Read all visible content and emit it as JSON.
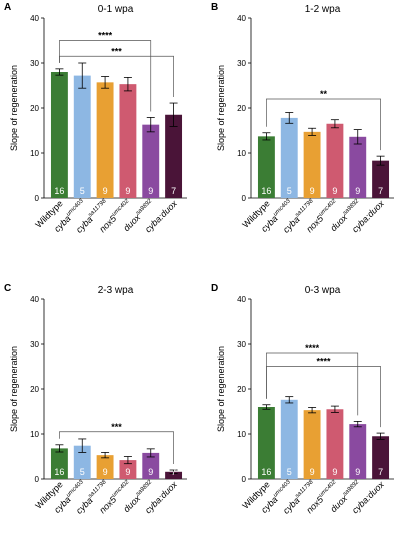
{
  "colors": {
    "Wildtype": "#3b7d34",
    "cyba_umc403": "#8db7e3",
    "cyba_sa11798": "#e8a033",
    "nox5_umc402": "#cf5a70",
    "duox_sa9892": "#8a4aa0",
    "cyba_duox": "#4a1438"
  },
  "chart_data": [
    {
      "type": "bar",
      "panel": "A",
      "title": "0-1 wpa",
      "ylabel": "Slope of regeneration",
      "ylim": [
        0,
        40
      ],
      "yticks": [
        "0",
        "10",
        "20",
        "30",
        "40"
      ],
      "categories": [
        {
          "base": "Wildtype",
          "sup": ""
        },
        {
          "base": "cyba",
          "sup": "umc403"
        },
        {
          "base": "cyba",
          "sup": "sa11798"
        },
        {
          "base": "nox5",
          "sup": "umc402"
        },
        {
          "base": "duox",
          "sup": "sa9892"
        },
        {
          "base": "cyba:duox",
          "sup": ""
        }
      ],
      "values": [
        28.0,
        27.2,
        25.7,
        25.3,
        16.3,
        18.5
      ],
      "errors": [
        0.7,
        2.8,
        1.3,
        1.5,
        1.6,
        2.6
      ],
      "n": [
        "16",
        "5",
        "9",
        "9",
        "9",
        "7"
      ],
      "significance": [
        {
          "from": 0,
          "to": 4,
          "label": "****",
          "y": 35.0
        },
        {
          "from": 0,
          "to": 5,
          "label": "***",
          "y": 31.5
        }
      ]
    },
    {
      "type": "bar",
      "panel": "B",
      "title": "1-2 wpa",
      "ylabel": "Slope of regeneration",
      "ylim": [
        0,
        40
      ],
      "yticks": [
        "0",
        "10",
        "20",
        "30",
        "40"
      ],
      "categories": [
        {
          "base": "Wildtype",
          "sup": ""
        },
        {
          "base": "cyba",
          "sup": "umc403"
        },
        {
          "base": "cyba",
          "sup": "sa11798"
        },
        {
          "base": "nox5",
          "sup": "umc402"
        },
        {
          "base": "duox",
          "sup": "sa9892"
        },
        {
          "base": "cyba:duox",
          "sup": ""
        }
      ],
      "values": [
        13.7,
        17.8,
        14.7,
        16.5,
        13.6,
        8.3
      ],
      "errors": [
        0.8,
        1.2,
        0.8,
        0.9,
        1.6,
        1.0
      ],
      "n": [
        "16",
        "5",
        "9",
        "9",
        "9",
        "7"
      ],
      "significance": [
        {
          "from": 0,
          "to": 5,
          "label": "**",
          "y": 22.0
        }
      ]
    },
    {
      "type": "bar",
      "panel": "C",
      "title": "2-3 wpa",
      "ylabel": "Slope of regeneration",
      "ylim": [
        0,
        40
      ],
      "yticks": [
        "0",
        "10",
        "20",
        "30",
        "40"
      ],
      "categories": [
        {
          "base": "Wildtype",
          "sup": ""
        },
        {
          "base": "cyba",
          "sup": "umc403"
        },
        {
          "base": "cyba",
          "sup": "sa11798"
        },
        {
          "base": "nox5",
          "sup": "umc402"
        },
        {
          "base": "duox",
          "sup": "sa9892"
        },
        {
          "base": "cyba:duox",
          "sup": ""
        }
      ],
      "values": [
        6.8,
        7.4,
        5.3,
        4.2,
        5.8,
        1.6
      ],
      "errors": [
        0.8,
        1.5,
        0.6,
        0.8,
        0.9,
        0.4
      ],
      "n": [
        "16",
        "5",
        "9",
        "9",
        "9",
        "7"
      ],
      "significance": [
        {
          "from": 0,
          "to": 5,
          "label": "***",
          "y": 10.5
        }
      ]
    },
    {
      "type": "bar",
      "panel": "D",
      "title": "0-3 wpa",
      "ylabel": "Slope of regeneration",
      "ylim": [
        0,
        40
      ],
      "yticks": [
        "0",
        "10",
        "20",
        "30",
        "40"
      ],
      "categories": [
        {
          "base": "Wildtype",
          "sup": ""
        },
        {
          "base": "cyba",
          "sup": "umc403"
        },
        {
          "base": "cyba",
          "sup": "sa11798"
        },
        {
          "base": "nox5",
          "sup": "umc402"
        },
        {
          "base": "duox",
          "sup": "sa9892"
        },
        {
          "base": "cyba:duox",
          "sup": ""
        }
      ],
      "values": [
        16.0,
        17.6,
        15.3,
        15.5,
        12.2,
        9.5
      ],
      "errors": [
        0.5,
        0.7,
        0.6,
        0.7,
        0.6,
        0.7
      ],
      "n": [
        "16",
        "5",
        "9",
        "9",
        "9",
        "7"
      ],
      "significance": [
        {
          "from": 0,
          "to": 4,
          "label": "****",
          "y": 28.0
        },
        {
          "from": 0,
          "to": 5,
          "label": "****",
          "y": 25.0
        }
      ]
    }
  ]
}
